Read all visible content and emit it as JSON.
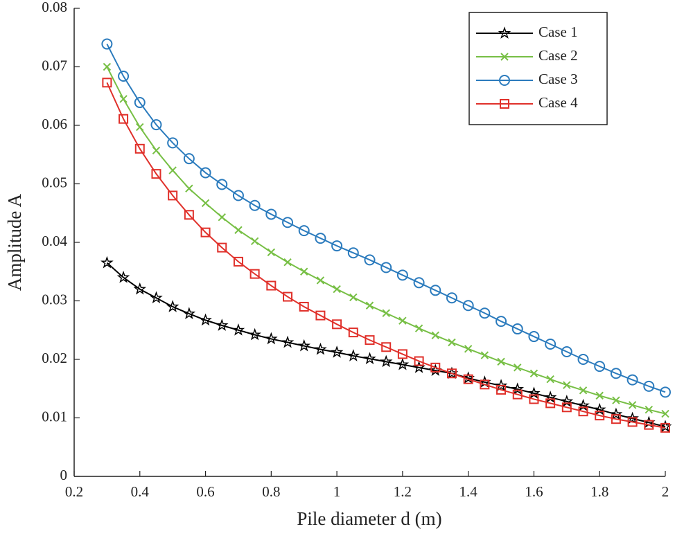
{
  "chart_data": {
    "type": "line",
    "xlabel": "Pile diameter d (m)",
    "ylabel": "Amplitude A",
    "x": [
      0.3,
      0.35,
      0.4,
      0.45,
      0.5,
      0.55,
      0.6,
      0.65,
      0.7,
      0.75,
      0.8,
      0.85,
      0.9,
      0.95,
      1.0,
      1.05,
      1.1,
      1.15,
      1.2,
      1.25,
      1.3,
      1.35,
      1.4,
      1.45,
      1.5,
      1.55,
      1.6,
      1.65,
      1.7,
      1.75,
      1.8,
      1.85,
      1.9,
      1.95,
      2.0
    ],
    "series": [
      {
        "name": "Case 1",
        "color": "#000000",
        "marker": "star",
        "values": [
          0.0365,
          0.034,
          0.032,
          0.0305,
          0.029,
          0.0278,
          0.0267,
          0.0258,
          0.025,
          0.0242,
          0.0235,
          0.0229,
          0.0223,
          0.0217,
          0.0212,
          0.0206,
          0.0201,
          0.0196,
          0.0191,
          0.0186,
          0.0181,
          0.0176,
          0.0168,
          0.0161,
          0.0155,
          0.0149,
          0.0142,
          0.0135,
          0.0128,
          0.0121,
          0.0114,
          0.0106,
          0.0099,
          0.0092,
          0.0085
        ]
      },
      {
        "name": "Case 2",
        "color": "#77bf45",
        "marker": "x",
        "values": [
          0.07,
          0.0645,
          0.0597,
          0.0557,
          0.0523,
          0.0492,
          0.0467,
          0.0443,
          0.0421,
          0.0402,
          0.0383,
          0.0366,
          0.035,
          0.0335,
          0.032,
          0.0306,
          0.0292,
          0.0279,
          0.0266,
          0.0253,
          0.0241,
          0.0229,
          0.0218,
          0.0207,
          0.0196,
          0.0186,
          0.0176,
          0.0166,
          0.0156,
          0.0147,
          0.0138,
          0.013,
          0.0122,
          0.0114,
          0.0107
        ]
      },
      {
        "name": "Case 3",
        "color": "#2b7bbd",
        "marker": "circle",
        "values": [
          0.0739,
          0.0684,
          0.0639,
          0.0601,
          0.057,
          0.0543,
          0.0519,
          0.0499,
          0.048,
          0.0463,
          0.0448,
          0.0434,
          0.042,
          0.0407,
          0.0394,
          0.0382,
          0.037,
          0.0357,
          0.0344,
          0.0331,
          0.0318,
          0.0305,
          0.0292,
          0.0279,
          0.0265,
          0.0252,
          0.0239,
          0.0226,
          0.0213,
          0.02,
          0.0188,
          0.0176,
          0.0165,
          0.0154,
          0.0144
        ]
      },
      {
        "name": "Case 4",
        "color": "#e0302a",
        "marker": "square",
        "values": [
          0.0673,
          0.0611,
          0.056,
          0.0517,
          0.048,
          0.0447,
          0.0417,
          0.0391,
          0.0367,
          0.0346,
          0.0326,
          0.0307,
          0.029,
          0.0275,
          0.026,
          0.0246,
          0.0233,
          0.0221,
          0.0209,
          0.0197,
          0.0186,
          0.0176,
          0.0166,
          0.0157,
          0.0148,
          0.014,
          0.0132,
          0.0125,
          0.0118,
          0.0111,
          0.0104,
          0.0098,
          0.0093,
          0.0088,
          0.0083
        ]
      }
    ],
    "xlim": [
      0.2,
      2
    ],
    "xticks": [
      0.2,
      0.4,
      0.6,
      0.8,
      1,
      1.2,
      1.4,
      1.6,
      1.8,
      2
    ],
    "ylim": [
      0,
      0.08
    ],
    "yticks": [
      0,
      0.01,
      0.02,
      0.03,
      0.04,
      0.05,
      0.06,
      0.07,
      0.08
    ],
    "grid": false,
    "legend": "upper right"
  }
}
